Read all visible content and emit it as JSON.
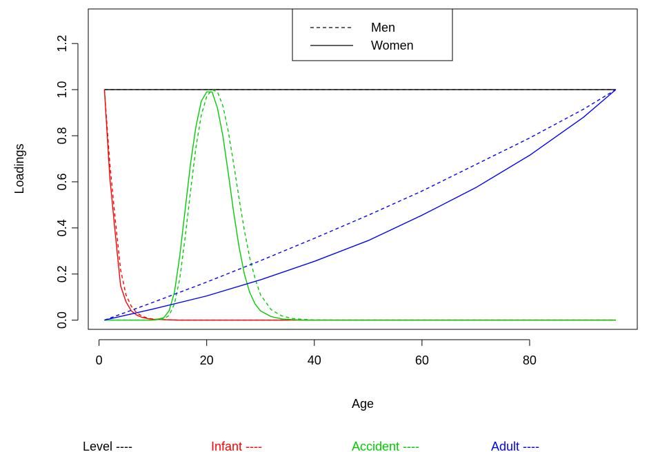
{
  "chart_data": {
    "type": "line",
    "title": "",
    "xlabel": "Age",
    "ylabel": "Loadings",
    "xlim": [
      -2,
      100
    ],
    "ylim": [
      -0.04,
      1.35
    ],
    "xticks": [
      0,
      20,
      40,
      60,
      80
    ],
    "yticks": [
      0.0,
      0.2,
      0.4,
      0.6,
      0.8,
      1.0,
      1.2
    ],
    "xtick_labels": [
      "0",
      "20",
      "40",
      "60",
      "80"
    ],
    "ytick_labels": [
      "0.0",
      "0.2",
      "0.4",
      "0.6",
      "0.8",
      "1.0",
      "1.2"
    ],
    "grid": false,
    "legend": {
      "position": "top-center",
      "entries": [
        {
          "label": "Men",
          "style": "dashed"
        },
        {
          "label": "Women",
          "style": "solid"
        }
      ]
    },
    "color_legend": {
      "position": "bottom",
      "entries": [
        {
          "label": "Level ----",
          "color": "#000000"
        },
        {
          "label": "Infant ----",
          "color": "#ff0000"
        },
        {
          "label": "Accident ----",
          "color": "#00cd00"
        },
        {
          "label": "Adult ----",
          "color": "#0000ff"
        }
      ]
    },
    "series": [
      {
        "component": "Level",
        "sex": "Women",
        "color": "#000000",
        "style": "solid",
        "x": [
          1,
          96
        ],
        "y": [
          1.0,
          1.0
        ]
      },
      {
        "component": "Level",
        "sex": "Men",
        "color": "#000000",
        "style": "dashed",
        "x": [
          1,
          96
        ],
        "y": [
          1.0,
          1.0
        ]
      },
      {
        "component": "Infant",
        "sex": "Women",
        "color": "#ff0000",
        "style": "solid",
        "x": [
          1,
          2,
          3,
          4,
          5,
          6,
          7,
          8,
          9,
          10,
          12,
          15,
          20,
          30,
          40,
          60,
          80,
          96
        ],
        "y": [
          1.0,
          0.62,
          0.38,
          0.15,
          0.08,
          0.04,
          0.022,
          0.012,
          0.007,
          0.004,
          0.002,
          0.0,
          0.0,
          0.0,
          0.0,
          0.0,
          0.0,
          0.0
        ]
      },
      {
        "component": "Infant",
        "sex": "Men",
        "color": "#ff0000",
        "style": "dashed",
        "x": [
          1,
          2,
          3,
          4,
          5,
          6,
          7,
          8,
          9,
          10,
          12,
          15,
          20,
          30,
          40,
          60,
          80,
          96
        ],
        "y": [
          1.0,
          0.68,
          0.44,
          0.22,
          0.11,
          0.06,
          0.032,
          0.017,
          0.009,
          0.005,
          0.002,
          0.0,
          0.0,
          0.0,
          0.0,
          0.0,
          0.0,
          0.0
        ]
      },
      {
        "component": "Accident",
        "sex": "Women",
        "color": "#00cd00",
        "style": "solid",
        "x": [
          1,
          5,
          10,
          12,
          13,
          14,
          15,
          16,
          17,
          18,
          19,
          20,
          21,
          22,
          23,
          24,
          25,
          26,
          27,
          28,
          29,
          30,
          32,
          34,
          36,
          38,
          40,
          45,
          50,
          60,
          80,
          96
        ],
        "y": [
          0.0,
          0.0,
          0.0,
          0.01,
          0.04,
          0.12,
          0.28,
          0.48,
          0.68,
          0.84,
          0.95,
          0.99,
          0.99,
          0.92,
          0.8,
          0.64,
          0.47,
          0.32,
          0.2,
          0.12,
          0.07,
          0.04,
          0.015,
          0.005,
          0.002,
          0.0,
          0.0,
          0.0,
          0.0,
          0.0,
          0.0,
          0.0
        ]
      },
      {
        "component": "Accident",
        "sex": "Men",
        "color": "#00cd00",
        "style": "dashed",
        "x": [
          1,
          5,
          10,
          12,
          13,
          14,
          15,
          16,
          17,
          18,
          19,
          20,
          21,
          22,
          23,
          24,
          25,
          26,
          27,
          28,
          29,
          30,
          32,
          34,
          36,
          38,
          40,
          45,
          50,
          60,
          80,
          96
        ],
        "y": [
          0.0,
          0.0,
          0.0,
          0.005,
          0.02,
          0.07,
          0.18,
          0.36,
          0.56,
          0.75,
          0.89,
          0.97,
          1.0,
          0.99,
          0.93,
          0.82,
          0.68,
          0.53,
          0.39,
          0.27,
          0.18,
          0.11,
          0.045,
          0.018,
          0.007,
          0.003,
          0.001,
          0.0,
          0.0,
          0.0,
          0.0,
          0.0
        ]
      },
      {
        "component": "Adult",
        "sex": "Women",
        "color": "#0000ff",
        "style": "solid",
        "x": [
          1,
          10,
          20,
          30,
          40,
          50,
          60,
          70,
          80,
          90,
          96
        ],
        "y": [
          0.0,
          0.048,
          0.105,
          0.175,
          0.255,
          0.345,
          0.455,
          0.575,
          0.715,
          0.88,
          1.0
        ]
      },
      {
        "component": "Adult",
        "sex": "Men",
        "color": "#0000ff",
        "style": "dashed",
        "x": [
          1,
          10,
          20,
          30,
          40,
          50,
          60,
          70,
          80,
          90,
          96
        ],
        "y": [
          0.0,
          0.077,
          0.165,
          0.258,
          0.355,
          0.455,
          0.56,
          0.675,
          0.79,
          0.915,
          1.0
        ]
      }
    ]
  }
}
